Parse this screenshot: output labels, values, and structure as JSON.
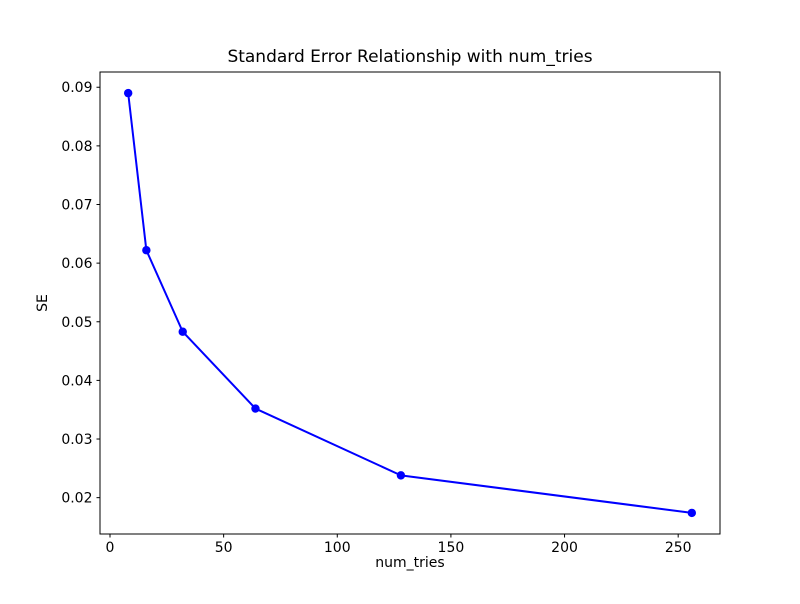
{
  "figure": {
    "background": "#ffffff"
  },
  "chart_data": {
    "type": "line",
    "title": "Standard Error Relationship with num_tries",
    "xlabel": "num_tries",
    "ylabel": "SE",
    "x": [
      8,
      16,
      32,
      64,
      128,
      256
    ],
    "y": [
      0.089,
      0.0622,
      0.0483,
      0.0352,
      0.0238,
      0.0174
    ],
    "line_color": "#0000ff",
    "marker": "circle",
    "marker_color": "#0000ff",
    "xlim": [
      -4.4,
      268.4
    ],
    "ylim": [
      0.0138,
      0.0926
    ],
    "xticks": [
      0,
      50,
      100,
      150,
      200,
      250
    ],
    "xtick_labels": [
      "0",
      "50",
      "100",
      "150",
      "200",
      "250"
    ],
    "yticks": [
      0.02,
      0.03,
      0.04,
      0.05,
      0.06,
      0.07,
      0.08,
      0.09
    ],
    "ytick_labels": [
      "0.02",
      "0.03",
      "0.04",
      "0.05",
      "0.06",
      "0.07",
      "0.08",
      "0.09"
    ],
    "grid": false,
    "legend": null,
    "spine_color": "#000000"
  }
}
